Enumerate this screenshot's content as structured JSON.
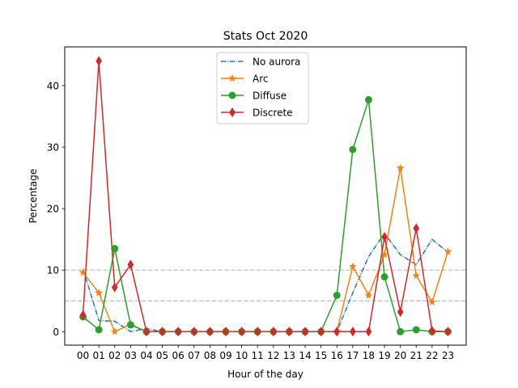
{
  "chart_data": {
    "type": "line",
    "title": "Stats Oct 2020",
    "xlabel": "Hour of the day",
    "ylabel": "Percentage",
    "categories": [
      "00",
      "01",
      "02",
      "03",
      "04",
      "05",
      "06",
      "07",
      "08",
      "09",
      "10",
      "11",
      "12",
      "13",
      "14",
      "15",
      "16",
      "17",
      "18",
      "19",
      "20",
      "21",
      "22",
      "23"
    ],
    "xlim": [
      -1.15,
      24.15
    ],
    "ylim": [
      -2.2,
      46.3
    ],
    "yticks": [
      0,
      10,
      20,
      30,
      40
    ],
    "reference_lines": [
      5,
      10
    ],
    "reference_line_color": "#bbbbbb",
    "grid": false,
    "legend_position": "top-center",
    "series": [
      {
        "name": "No aurora",
        "color": "#1f77b4",
        "linestyle": "dashdot",
        "marker": "none",
        "values": [
          10.2,
          1.8,
          1.7,
          0,
          0.5,
          0,
          0,
          0,
          0,
          0,
          0,
          0,
          0,
          0,
          0,
          0,
          0,
          6.3,
          12.2,
          16.0,
          12.5,
          10.9,
          15.0,
          12.9
        ]
      },
      {
        "name": "Arc",
        "color": "#ff7f0e",
        "linestyle": "solid",
        "marker": "star",
        "values": [
          9.6,
          6.3,
          0,
          1.2,
          0,
          0,
          0,
          0,
          0,
          0,
          0,
          0,
          0,
          0,
          0,
          0,
          0,
          10.6,
          5.9,
          12.5,
          26.6,
          9.1,
          4.8,
          13.0
        ]
      },
      {
        "name": "Diffuse",
        "color": "#2ca02c",
        "linestyle": "solid",
        "marker": "circle",
        "values": [
          2.4,
          0.3,
          13.5,
          1.1,
          0,
          0,
          0,
          0,
          0,
          0,
          0,
          0,
          0,
          0,
          0,
          0,
          5.9,
          29.6,
          37.7,
          8.9,
          0,
          0.3,
          0,
          0
        ]
      },
      {
        "name": "Discrete",
        "color": "#d62728",
        "linestyle": "solid",
        "marker": "diamond",
        "values": [
          2.7,
          44.0,
          7.2,
          10.9,
          0,
          0,
          0,
          0,
          0,
          0,
          0,
          0,
          0,
          0,
          0,
          0,
          0,
          0,
          0,
          15.4,
          3.2,
          16.8,
          0.1,
          0
        ]
      }
    ]
  }
}
